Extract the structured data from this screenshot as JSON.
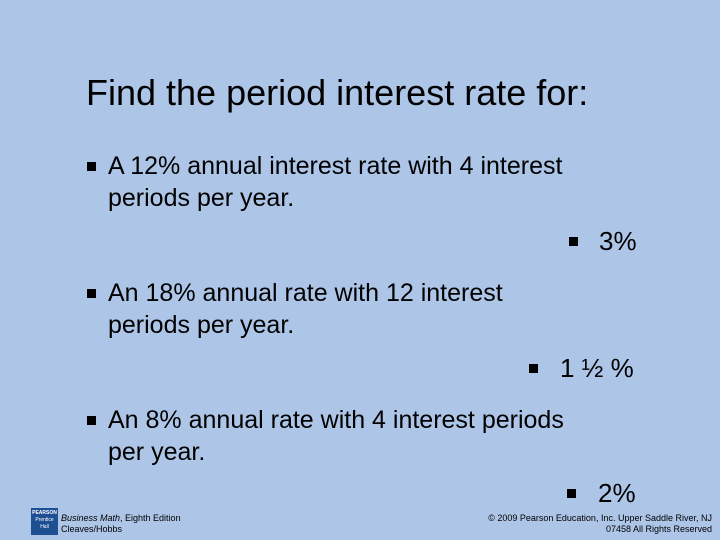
{
  "title": "Find the period interest rate for:",
  "items": [
    {
      "lines": [
        "A 12% annual interest rate with 4 interest",
        "periods per year."
      ],
      "answer": "3%"
    },
    {
      "lines": [
        "An 18% annual rate with 12 interest",
        "periods per year."
      ],
      "answer": "1 ½ %"
    },
    {
      "lines": [
        "An 8% annual rate with 4 interest periods",
        "per year."
      ],
      "answer": "2%"
    }
  ],
  "footer": {
    "logo": [
      "PEARSON",
      "Prentice",
      "Hall"
    ],
    "book_title": "Business Math",
    "edition": ", Eighth Edition",
    "authors": "Cleaves/Hobbs",
    "copyright": [
      "© 2009 Pearson Education, Inc. Upper Saddle River, NJ",
      "07458 All Rights Reserved"
    ]
  }
}
